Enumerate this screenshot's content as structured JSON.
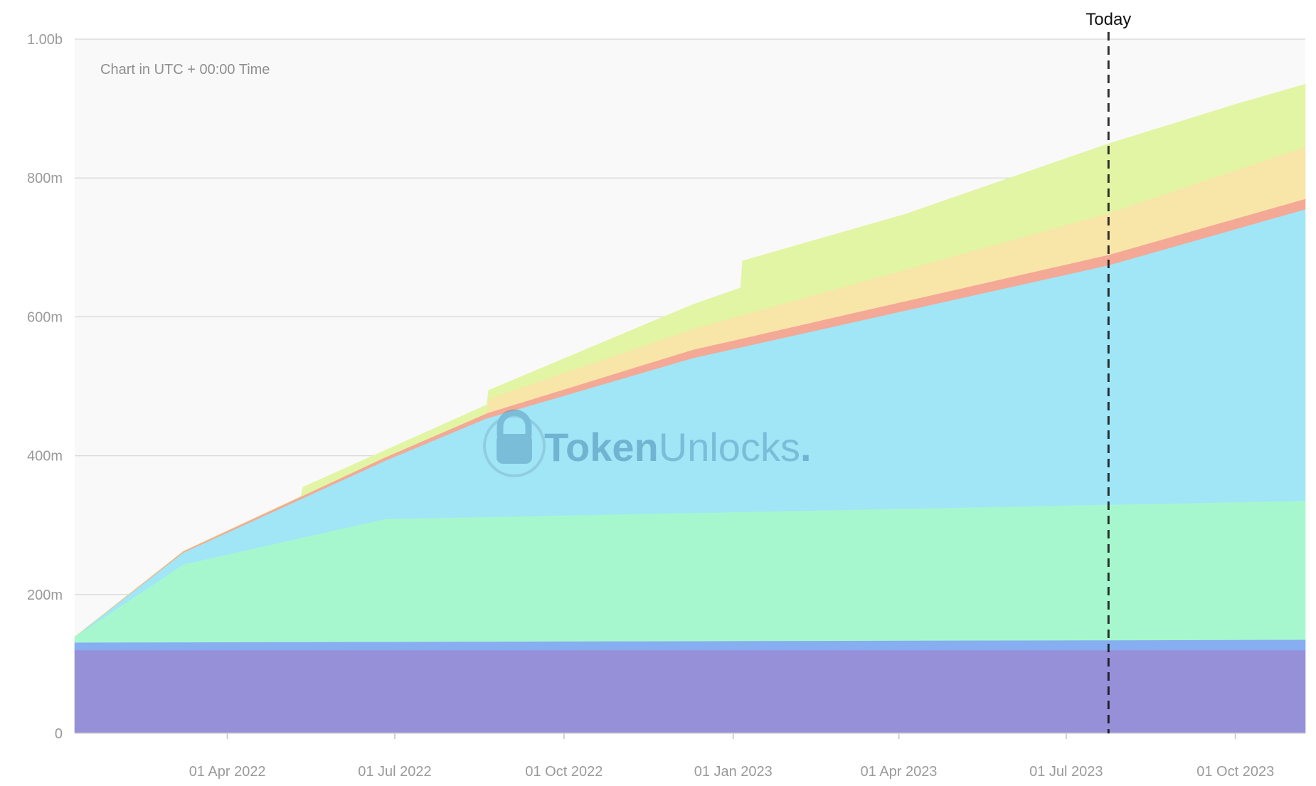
{
  "chart_data": {
    "type": "area",
    "stacked": true,
    "note": "Chart in UTC + 00:00 Time",
    "watermark": {
      "brand_bold": "Token",
      "brand_light": "Unlocks",
      "dot": ".",
      "icon": "lock-icon"
    },
    "today_label": "Today",
    "today_date": "2023-07-24",
    "x_range": [
      "2022-01-08",
      "2023-11-08"
    ],
    "x_ticks": [
      {
        "date": "2022-04-01",
        "label": "01 Apr 2022"
      },
      {
        "date": "2022-07-01",
        "label": "01 Jul 2022"
      },
      {
        "date": "2022-10-01",
        "label": "01 Oct 2022"
      },
      {
        "date": "2023-01-01",
        "label": "01 Jan 2023"
      },
      {
        "date": "2023-04-01",
        "label": "01 Apr 2023"
      },
      {
        "date": "2023-07-01",
        "label": "01 Jul 2023"
      },
      {
        "date": "2023-10-01",
        "label": "01 Oct 2023"
      }
    ],
    "y_range": [
      0,
      1000000000
    ],
    "y_ticks": [
      {
        "value": 0,
        "label": "0"
      },
      {
        "value": 200000000,
        "label": "200m"
      },
      {
        "value": 400000000,
        "label": "400m"
      },
      {
        "value": 600000000,
        "label": "600m"
      },
      {
        "value": 800000000,
        "label": "800m"
      },
      {
        "value": 1000000000,
        "label": "1.00b"
      }
    ],
    "grid": true,
    "legend": "none",
    "series": [
      {
        "color": "#9690d8",
        "points": [
          [
            "2022-01-08",
            120000000
          ],
          [
            "2023-11-08",
            120000000
          ]
        ]
      },
      {
        "color": "#86aef0",
        "points": [
          [
            "2022-01-08",
            11000000
          ],
          [
            "2023-11-08",
            15000000
          ]
        ]
      },
      {
        "color": "#a7f7ce",
        "points": [
          [
            "2022-01-08",
            8000000
          ],
          [
            "2022-03-08",
            112000000
          ],
          [
            "2022-06-26",
            177000000
          ],
          [
            "2023-07-24",
            195000000
          ],
          [
            "2023-11-08",
            200000000
          ]
        ]
      },
      {
        "color": "#a0e6f6",
        "points": [
          [
            "2022-01-08",
            0
          ],
          [
            "2022-03-08",
            17000000
          ],
          [
            "2022-06-26",
            84000000
          ],
          [
            "2022-08-20",
            142000000
          ],
          [
            "2022-12-10",
            223000000
          ],
          [
            "2023-07-24",
            345000000
          ],
          [
            "2023-11-08",
            420000000
          ]
        ]
      },
      {
        "color": "#f3a996",
        "points": [
          [
            "2022-01-08",
            0
          ],
          [
            "2022-03-08",
            2000000
          ],
          [
            "2022-06-26",
            5000000
          ],
          [
            "2022-12-10",
            12000000
          ],
          [
            "2023-07-24",
            15000000
          ],
          [
            "2023-11-08",
            15000000
          ]
        ]
      },
      {
        "color": "#f8e5a8",
        "points": [
          [
            "2022-01-08",
            0
          ],
          [
            "2022-08-20",
            0
          ],
          [
            "2022-08-21",
            20000000
          ],
          [
            "2022-12-10",
            30000000
          ],
          [
            "2023-07-24",
            60000000
          ],
          [
            "2023-11-08",
            75000000
          ]
        ]
      },
      {
        "color": "#e2f5a4",
        "points": [
          [
            "2022-01-08",
            0
          ],
          [
            "2022-05-11",
            0
          ],
          [
            "2022-05-12",
            12000000
          ],
          [
            "2022-06-26",
            10000000
          ],
          [
            "2022-08-20",
            12000000
          ],
          [
            "2022-11-15",
            30000000
          ],
          [
            "2023-01-05",
            40000000
          ],
          [
            "2023-01-06",
            78000000
          ],
          [
            "2023-04-05",
            80000000
          ],
          [
            "2023-07-24",
            100000000
          ],
          [
            "2023-10-01",
            95000000
          ],
          [
            "2023-11-08",
            90000000
          ]
        ]
      }
    ]
  }
}
